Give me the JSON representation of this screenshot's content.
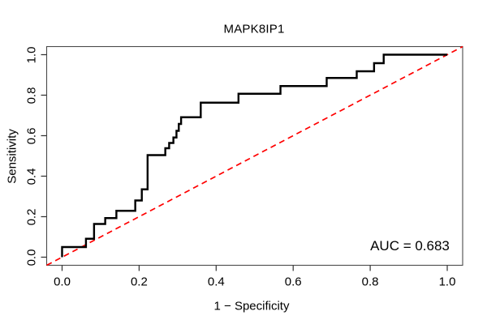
{
  "chart_data": {
    "type": "line",
    "subtype": "roc-step-curve",
    "title": "MAPK8IP1",
    "xlabel": "1 − Specificity",
    "ylabel": "Sensitivity",
    "xlim": [
      -0.04,
      1.04
    ],
    "ylim": [
      -0.04,
      1.04
    ],
    "grid": false,
    "legend": null,
    "x_ticks": [
      0.0,
      0.2,
      0.4,
      0.6,
      0.8,
      1.0
    ],
    "y_ticks": [
      0.0,
      0.2,
      0.4,
      0.6,
      0.8,
      1.0
    ],
    "x_tick_labels": [
      "0.0",
      "0.2",
      "0.4",
      "0.6",
      "0.8",
      "1.0"
    ],
    "y_tick_labels": [
      "0.0",
      "0.2",
      "0.4",
      "0.6",
      "0.8",
      "1.0"
    ],
    "auc_value": 0.683,
    "annotations": [
      {
        "text": "AUC = 0.683",
        "x": 0.903,
        "y": 0.054
      }
    ],
    "series": [
      {
        "name": "ROC curve",
        "color": "#000000",
        "style": "solid-step",
        "points": [
          [
            0.0,
            0.0
          ],
          [
            0.0,
            0.05
          ],
          [
            0.062,
            0.05
          ],
          [
            0.062,
            0.091
          ],
          [
            0.083,
            0.091
          ],
          [
            0.083,
            0.164
          ],
          [
            0.112,
            0.164
          ],
          [
            0.112,
            0.193
          ],
          [
            0.141,
            0.193
          ],
          [
            0.141,
            0.229
          ],
          [
            0.19,
            0.229
          ],
          [
            0.19,
            0.28
          ],
          [
            0.207,
            0.28
          ],
          [
            0.207,
            0.335
          ],
          [
            0.222,
            0.335
          ],
          [
            0.222,
            0.504
          ],
          [
            0.268,
            0.504
          ],
          [
            0.268,
            0.538
          ],
          [
            0.278,
            0.538
          ],
          [
            0.278,
            0.564
          ],
          [
            0.289,
            0.564
          ],
          [
            0.289,
            0.591
          ],
          [
            0.297,
            0.591
          ],
          [
            0.297,
            0.624
          ],
          [
            0.303,
            0.624
          ],
          [
            0.303,
            0.658
          ],
          [
            0.309,
            0.658
          ],
          [
            0.309,
            0.691
          ],
          [
            0.36,
            0.691
          ],
          [
            0.36,
            0.763
          ],
          [
            0.458,
            0.763
          ],
          [
            0.458,
            0.807
          ],
          [
            0.567,
            0.807
          ],
          [
            0.567,
            0.845
          ],
          [
            0.687,
            0.845
          ],
          [
            0.687,
            0.885
          ],
          [
            0.765,
            0.885
          ],
          [
            0.765,
            0.918
          ],
          [
            0.81,
            0.918
          ],
          [
            0.81,
            0.958
          ],
          [
            0.835,
            0.958
          ],
          [
            0.835,
            1.0
          ],
          [
            1.0,
            1.0
          ]
        ]
      },
      {
        "name": "chance diagonal",
        "color": "#FF0000",
        "style": "dashed",
        "points": [
          [
            -0.04,
            -0.04
          ],
          [
            1.04,
            1.04
          ]
        ]
      }
    ]
  }
}
